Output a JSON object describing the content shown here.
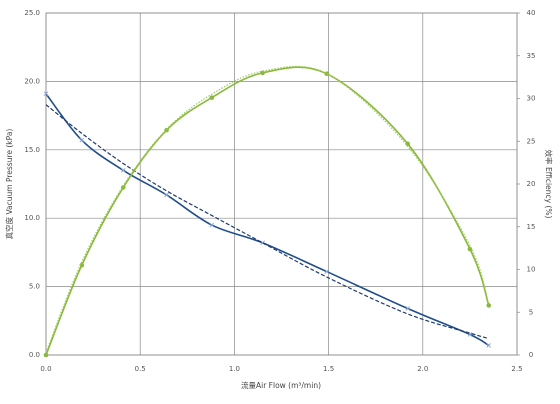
{
  "chart_data": {
    "type": "line",
    "x_label": "流量Air Flow (m³/min)",
    "y_label": "真空度 Vacuum Pressure (kPa)",
    "y2_label": "效率 Efficiency (%)",
    "x": [
      0,
      0.19,
      0.41,
      0.64,
      0.88,
      1.15,
      1.49,
      1.92,
      2.25,
      2.35
    ],
    "series": [
      {
        "color": "#1f4e8c",
        "style": "solid",
        "marker": "x",
        "values": [
          19.1,
          15.7,
          13.5,
          11.7,
          9.5,
          8.2,
          6.1,
          3.4,
          1.5,
          0.7
        ]
      },
      {
        "color": "#1f3a6e",
        "style": "dashed",
        "marker": "none",
        "values": [
          18.3,
          16.2,
          14.0,
          12.0,
          10.2,
          8.2,
          5.7,
          3.0,
          1.6,
          1.2
        ]
      },
      {
        "color": "#8ab83c",
        "style": "solid",
        "marker": "circle",
        "axis": "y2",
        "values": [
          0,
          10.5,
          19.6,
          26.3,
          30.1,
          33.0,
          32.9,
          24.7,
          12.4,
          5.8
        ]
      },
      {
        "color": "#9ccc5a",
        "style": "dotted",
        "marker": "none",
        "axis": "y2",
        "values": [
          0.3,
          10.9,
          19.8,
          26.4,
          30.5,
          33.2,
          32.9,
          24.4,
          12.8,
          6.0
        ]
      }
    ],
    "xlim": [
      0,
      2.5
    ],
    "xticks": [
      {
        "value": 0,
        "label": "0.0"
      },
      0.5,
      {
        "value": 1,
        "label": "1.0"
      },
      1.5,
      {
        "value": 2,
        "label": "2.0"
      },
      2.5
    ],
    "ylim": [
      0,
      25
    ],
    "yticks": [
      {
        "value": 0,
        "label": "0.0"
      },
      {
        "value": 5,
        "label": "5.0"
      },
      {
        "value": 10,
        "label": "10.0"
      },
      {
        "value": 15,
        "label": "15.0"
      },
      {
        "value": 20,
        "label": "20.0"
      },
      {
        "value": 25,
        "label": "25.0"
      }
    ],
    "y2lim": [
      0,
      40
    ],
    "y2ticks": [
      0,
      5,
      10,
      15,
      20,
      25,
      30,
      35,
      40
    ],
    "grid": true
  }
}
